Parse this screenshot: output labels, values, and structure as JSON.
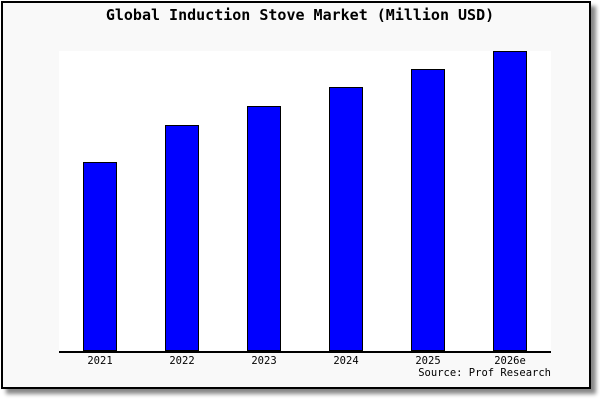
{
  "chart_data": {
    "type": "bar",
    "title": "Global Induction Stove Market (Million USD)",
    "categories": [
      "2021",
      "2022",
      "2023",
      "2024",
      "2025",
      "2026e"
    ],
    "values": [
      189,
      226,
      245,
      264,
      282,
      300
    ],
    "values_note": "No numeric y-axis is shown in the image; values are relative bar heights read from pixels (2026e tallest, touching plot top).",
    "xlabel": "",
    "ylabel": "",
    "legend": false,
    "grid": false,
    "y_axis_visible": false,
    "source_label": "Source: Prof Research",
    "colors": {
      "bar_fill": "#0000ff",
      "bar_border": "#000000",
      "plot_background": "#ffffff",
      "frame_background": "#f9f9f9",
      "frame_border": "#000000",
      "axis": "#000000",
      "text": "#000000",
      "shadow": "#888888"
    }
  }
}
